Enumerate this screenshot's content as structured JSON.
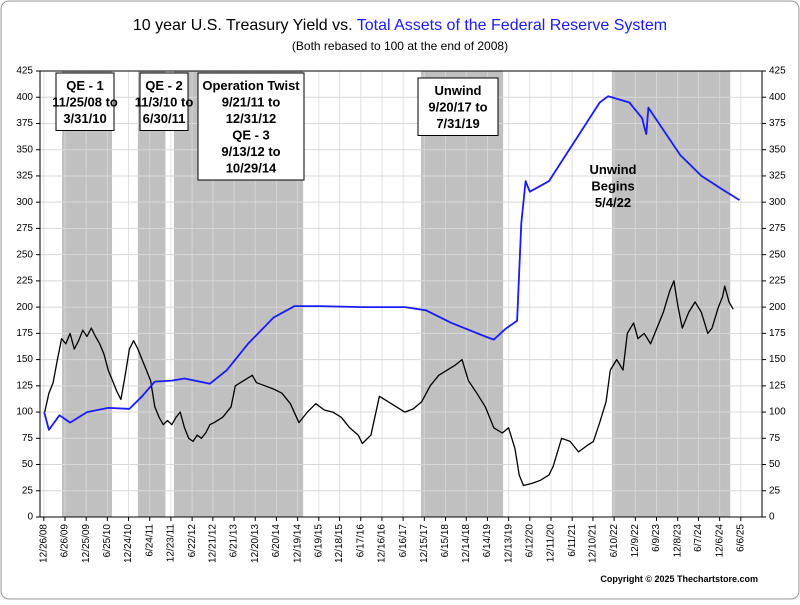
{
  "chart_data": {
    "type": "line",
    "title": [
      "10 year U.S. Treasury Yield vs.",
      "Total Assets of the Federal Reserve System"
    ],
    "subtitle": "(Both rebased to 100 at the end of 2008)",
    "copyright": "Copyright © 2025 Thechartstore.com",
    "xlim": [
      2008.89,
      2025.93
    ],
    "xticks": [
      {
        "value": 2008.98,
        "label": "12/26/08"
      },
      {
        "value": 2009.48,
        "label": "6/26/09"
      },
      {
        "value": 2009.98,
        "label": "12/25/09"
      },
      {
        "value": 2010.48,
        "label": "6/25/10"
      },
      {
        "value": 2010.98,
        "label": "12/24/10"
      },
      {
        "value": 2011.48,
        "label": "6/24/11"
      },
      {
        "value": 2011.98,
        "label": "12/23/11"
      },
      {
        "value": 2012.48,
        "label": "6/22/12"
      },
      {
        "value": 2012.97,
        "label": "12/21/12"
      },
      {
        "value": 2013.47,
        "label": "6/21/13"
      },
      {
        "value": 2013.97,
        "label": "12/20/13"
      },
      {
        "value": 2014.47,
        "label": "6/20/14"
      },
      {
        "value": 2014.97,
        "label": "12/19/14"
      },
      {
        "value": 2015.47,
        "label": "6/19/15"
      },
      {
        "value": 2015.96,
        "label": "12/18/15"
      },
      {
        "value": 2016.46,
        "label": "6/17/16"
      },
      {
        "value": 2016.96,
        "label": "12/16/16"
      },
      {
        "value": 2017.46,
        "label": "6/16/17"
      },
      {
        "value": 2017.96,
        "label": "12/15/17"
      },
      {
        "value": 2018.46,
        "label": "6/15/18"
      },
      {
        "value": 2018.95,
        "label": "12/14/18"
      },
      {
        "value": 2019.45,
        "label": "6/14/19"
      },
      {
        "value": 2019.95,
        "label": "12/13/19"
      },
      {
        "value": 2020.45,
        "label": "6/12/20"
      },
      {
        "value": 2020.95,
        "label": "12/11/20"
      },
      {
        "value": 2021.45,
        "label": "6/11/21"
      },
      {
        "value": 2021.94,
        "label": "12/10/21"
      },
      {
        "value": 2022.44,
        "label": "6/10/22"
      },
      {
        "value": 2022.94,
        "label": "12/9/22"
      },
      {
        "value": 2023.44,
        "label": "6/9/23"
      },
      {
        "value": 2023.94,
        "label": "12/8/23"
      },
      {
        "value": 2024.43,
        "label": "6/7/24"
      },
      {
        "value": 2024.93,
        "label": "12/6/24"
      },
      {
        "value": 2025.43,
        "label": "6/6/25"
      }
    ],
    "ylim": [
      0,
      425
    ],
    "yticks": [
      0,
      25,
      50,
      75,
      100,
      125,
      150,
      175,
      200,
      225,
      250,
      275,
      300,
      325,
      350,
      375,
      400,
      425
    ],
    "y2lim": [
      0,
      425
    ],
    "y2ticks": [
      0,
      25,
      50,
      75,
      100,
      125,
      150,
      175,
      200,
      225,
      250,
      275,
      300,
      325,
      350,
      375,
      400,
      425
    ],
    "grid": true,
    "bands": [
      {
        "xlim": [
          2009.41,
          2010.59
        ],
        "color": "#c0c0c0"
      },
      {
        "xlim": [
          2011.2,
          2011.85
        ],
        "color": "#c0c0c0"
      },
      {
        "xlim": [
          2012.05,
          2015.1
        ],
        "color": "#c0c0c0"
      },
      {
        "xlim": [
          2017.88,
          2019.82
        ],
        "color": "#c0c0c0"
      },
      {
        "xlim": [
          2022.39,
          2025.18
        ],
        "color": "#c0c0c0"
      }
    ],
    "annotations": [
      {
        "lines": [
          "QE - 1",
          "11/25/08 to",
          "3/31/10"
        ],
        "boxed": true
      },
      {
        "lines": [
          "QE - 2",
          "11/3/10 to",
          "6/30/11"
        ],
        "boxed": true
      },
      {
        "lines": [
          "Operation Twist",
          "9/21/11 to",
          "12/31/12",
          "QE - 3",
          "9/13/12 to",
          "10/29/14"
        ],
        "boxed": true
      },
      {
        "lines": [
          "Unwind",
          "9/20/17 to",
          "7/31/19"
        ],
        "boxed": true
      },
      {
        "lines": [
          "Unwind",
          "Begins",
          "5/4/22"
        ],
        "boxed": false
      }
    ],
    "series": [
      {
        "color": "#000000",
        "x": [
          2009.0,
          2009.1,
          2009.2,
          2009.3,
          2009.4,
          2009.5,
          2009.6,
          2009.7,
          2009.8,
          2009.9,
          2010.0,
          2010.1,
          2010.2,
          2010.3,
          2010.4,
          2010.5,
          2010.6,
          2010.7,
          2010.8,
          2010.9,
          2011.0,
          2011.1,
          2011.2,
          2011.3,
          2011.4,
          2011.5,
          2011.6,
          2011.7,
          2011.8,
          2011.9,
          2012.0,
          2012.1,
          2012.2,
          2012.3,
          2012.4,
          2012.5,
          2012.6,
          2012.7,
          2012.8,
          2012.9,
          2013.0,
          2013.2,
          2013.4,
          2013.5,
          2013.7,
          2013.9,
          2014.0,
          2014.2,
          2014.4,
          2014.6,
          2014.8,
          2015.0,
          2015.2,
          2015.4,
          2015.6,
          2015.8,
          2016.0,
          2016.2,
          2016.4,
          2016.5,
          2016.7,
          2016.9,
          2017.1,
          2017.3,
          2017.5,
          2017.7,
          2017.9,
          2018.1,
          2018.3,
          2018.5,
          2018.7,
          2018.85,
          2019.0,
          2019.2,
          2019.4,
          2019.6,
          2019.8,
          2019.95,
          2020.1,
          2020.2,
          2020.3,
          2020.5,
          2020.7,
          2020.9,
          2021.0,
          2021.2,
          2021.4,
          2021.6,
          2021.8,
          2021.95,
          2022.1,
          2022.25,
          2022.35,
          2022.5,
          2022.65,
          2022.75,
          2022.9,
          2023.0,
          2023.15,
          2023.3,
          2023.45,
          2023.6,
          2023.75,
          2023.85,
          2023.95,
          2024.05,
          2024.2,
          2024.35,
          2024.5,
          2024.65,
          2024.75,
          2024.9,
          2025.0,
          2025.05,
          2025.15,
          2025.25
        ],
        "values": [
          100,
          118,
          128,
          150,
          170,
          165,
          175,
          160,
          168,
          178,
          172,
          180,
          172,
          165,
          155,
          140,
          130,
          120,
          112,
          135,
          160,
          168,
          160,
          150,
          140,
          130,
          105,
          95,
          88,
          92,
          88,
          95,
          100,
          85,
          75,
          72,
          78,
          75,
          80,
          88,
          90,
          95,
          105,
          125,
          130,
          135,
          128,
          125,
          122,
          118,
          108,
          90,
          100,
          108,
          102,
          100,
          95,
          85,
          78,
          70,
          78,
          115,
          110,
          105,
          100,
          103,
          110,
          125,
          135,
          140,
          145,
          150,
          130,
          118,
          105,
          85,
          80,
          85,
          65,
          40,
          30,
          32,
          35,
          40,
          48,
          75,
          72,
          62,
          68,
          72,
          90,
          110,
          140,
          150,
          140,
          175,
          185,
          170,
          175,
          165,
          180,
          195,
          215,
          225,
          200,
          180,
          195,
          205,
          195,
          175,
          180,
          200,
          210,
          220,
          205,
          198
        ]
      },
      {
        "color": "#1a1aff",
        "x": [
          2008.99,
          2009.1,
          2009.35,
          2009.6,
          2010.0,
          2010.5,
          2011.0,
          2011.3,
          2011.6,
          2012.0,
          2012.3,
          2012.9,
          2013.3,
          2013.8,
          2014.4,
          2014.9,
          2015.5,
          2016.5,
          2017.5,
          2018.0,
          2018.6,
          2019.4,
          2019.6,
          2019.9,
          2020.15,
          2020.25,
          2020.35,
          2020.45,
          2020.9,
          2021.3,
          2021.7,
          2022.1,
          2022.3,
          2022.8,
          2023.1,
          2023.15,
          2023.2,
          2023.25,
          2023.5,
          2024.0,
          2024.5,
          2025.0,
          2025.4
        ],
        "values": [
          100,
          83,
          97,
          90,
          100,
          104,
          103,
          115,
          129,
          130,
          132,
          127,
          140,
          165,
          190,
          201,
          201,
          200,
          200,
          197,
          185,
          172,
          169,
          180,
          187,
          280,
          320,
          310,
          320,
          345,
          370,
          395,
          401,
          395,
          380,
          372,
          365,
          390,
          375,
          345,
          325,
          312,
          302
        ]
      }
    ]
  }
}
